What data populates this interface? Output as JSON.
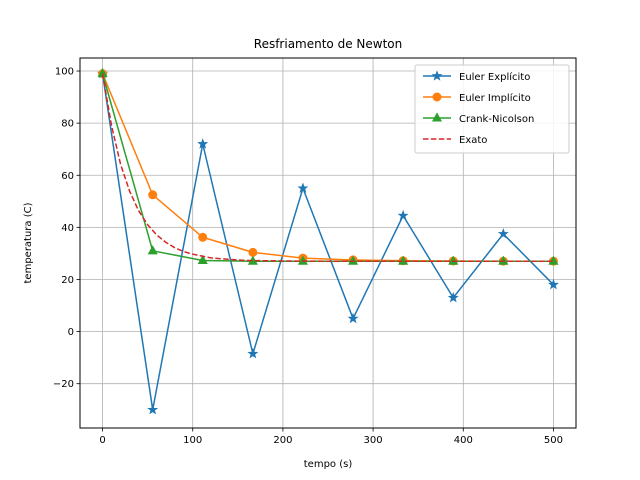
{
  "chart_data": {
    "type": "line",
    "title": "Resfriamento de Newton",
    "xlabel": "tempo (s)",
    "ylabel": "temperatura (C)",
    "xlim": [
      -25,
      525
    ],
    "ylim": [
      -37,
      105
    ],
    "xticks": [
      0,
      100,
      200,
      300,
      400,
      500
    ],
    "yticks": [
      -20,
      0,
      20,
      40,
      60,
      80,
      100
    ],
    "grid": true,
    "legend_position": "top-right",
    "series": [
      {
        "name": "Euler Explícito",
        "color": "#1f77b4",
        "marker": "star",
        "style": "solid",
        "x": [
          0,
          55.6,
          111.1,
          166.7,
          222.2,
          277.8,
          333.3,
          388.9,
          444.4,
          500
        ],
        "y": [
          99,
          -30,
          72,
          -8.5,
          55,
          5,
          44.5,
          13,
          37.5,
          18
        ]
      },
      {
        "name": "Euler Implícito",
        "color": "#ff7f0e",
        "marker": "circle",
        "style": "solid",
        "x": [
          0,
          55.6,
          111.1,
          166.7,
          222.2,
          277.8,
          333.3,
          388.9,
          444.4,
          500
        ],
        "y": [
          99,
          52.5,
          36.2,
          30.4,
          28.2,
          27.5,
          27.2,
          27.1,
          27.0,
          27.0
        ]
      },
      {
        "name": "Crank-Nicolson",
        "color": "#2ca02c",
        "marker": "triangle",
        "style": "solid",
        "x": [
          0,
          55.6,
          111.1,
          166.7,
          222.2,
          277.8,
          333.3,
          388.9,
          444.4,
          500
        ],
        "y": [
          99,
          31,
          27.3,
          27.0,
          27.0,
          27.0,
          27.0,
          27.0,
          27.0,
          27.0
        ]
      },
      {
        "name": "Exato",
        "color": "#d62728",
        "marker": "none",
        "style": "dashed",
        "x": [
          0,
          10,
          20,
          30,
          40,
          50,
          60,
          70,
          80,
          90,
          100,
          120,
          140,
          160,
          180,
          200,
          250,
          300,
          350,
          400,
          450,
          500
        ],
        "y": [
          99,
          79,
          64.2,
          53.9,
          46.4,
          41.0,
          37.1,
          34.3,
          32.2,
          30.7,
          29.7,
          28.3,
          27.7,
          27.3,
          27.2,
          27.1,
          27.0,
          27.0,
          27.0,
          27.0,
          27.0,
          27.0
        ]
      }
    ]
  }
}
